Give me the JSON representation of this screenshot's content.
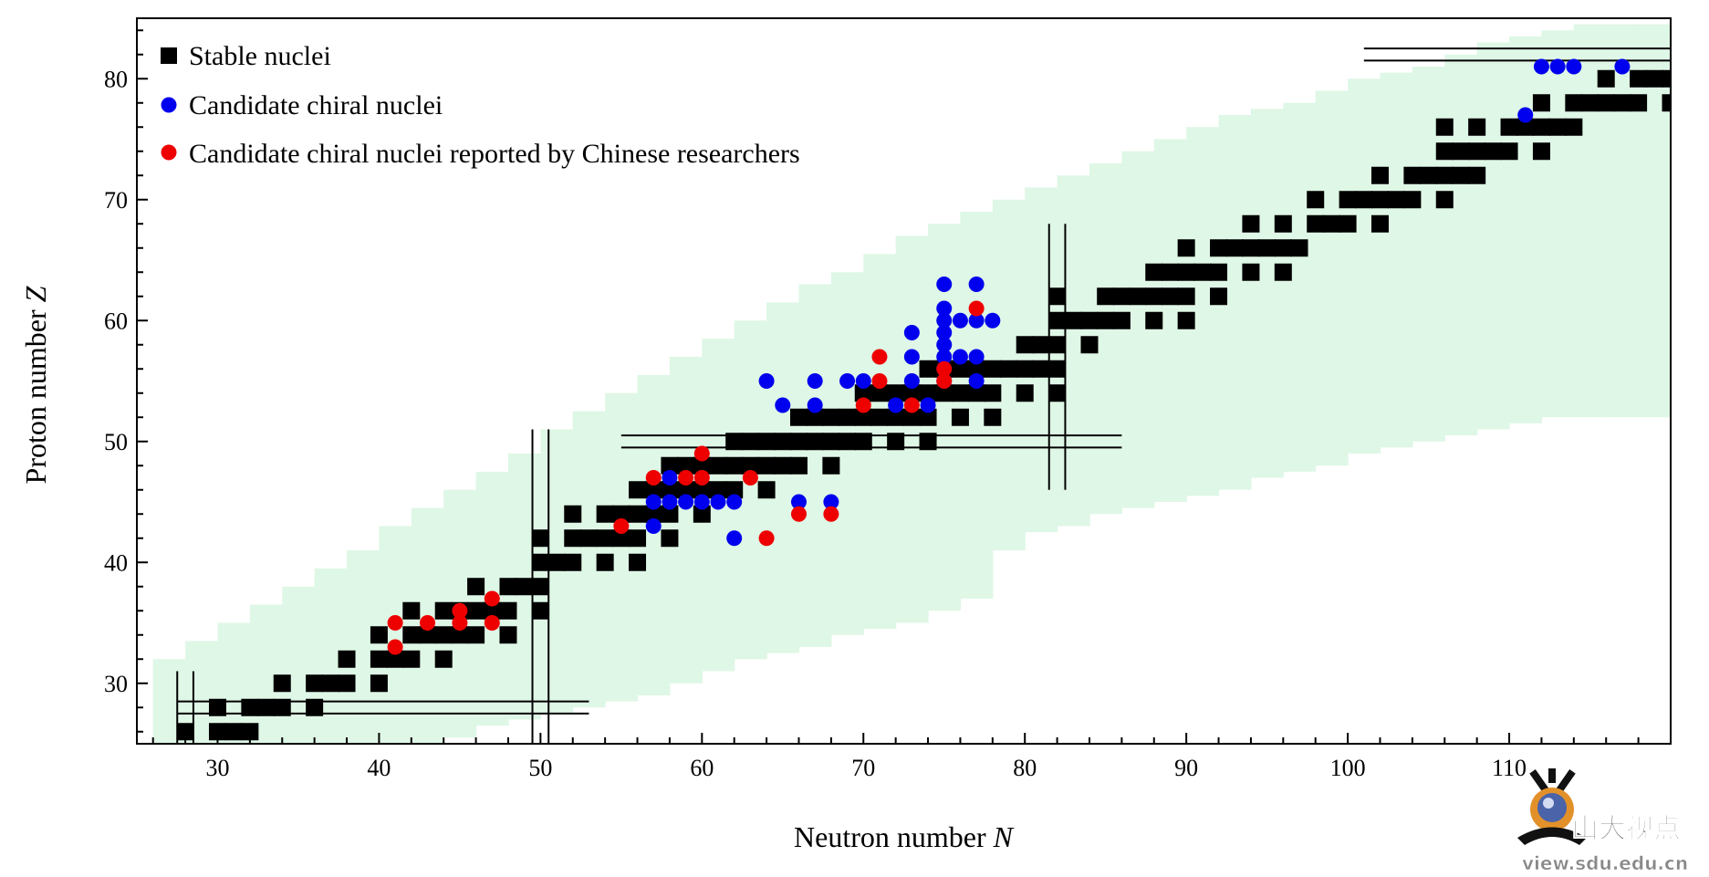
{
  "chart_data": {
    "type": "scatter",
    "title": "",
    "xlabel": "Neutron number N",
    "xlabel_main": "Neutron number ",
    "xlabel_var": "N",
    "ylabel": "Proton number Z",
    "ylabel_main": "Proton number ",
    "ylabel_var": "Z",
    "xlim": [
      25,
      120
    ],
    "ylim": [
      25,
      85
    ],
    "xticks": [
      30,
      40,
      50,
      60,
      70,
      80,
      90,
      100,
      110
    ],
    "xtick_labels": [
      "30",
      "40",
      "50",
      "60",
      "70",
      "80",
      "90",
      "100",
      "110"
    ],
    "yticks": [
      30,
      40,
      50,
      60,
      70,
      80
    ],
    "ytick_labels": [
      "30",
      "40",
      "50",
      "60",
      "70",
      "80"
    ],
    "grid": false,
    "legend_position": "top-left",
    "colors": {
      "stable": "#000000",
      "candidate": "#0000ee",
      "chinese": "#ee0000",
      "band": "#dff7e6"
    },
    "band": [
      [
        26,
        25,
        32
      ],
      [
        28,
        25,
        33.5
      ],
      [
        30,
        25,
        35
      ],
      [
        32,
        25,
        36.5
      ],
      [
        34,
        25,
        38
      ],
      [
        36,
        25,
        39.5
      ],
      [
        38,
        25,
        41
      ],
      [
        40,
        25,
        43
      ],
      [
        42,
        25,
        44.5
      ],
      [
        44,
        25.5,
        46
      ],
      [
        46,
        26.5,
        47.5
      ],
      [
        48,
        27,
        49
      ],
      [
        50,
        27.5,
        51
      ],
      [
        52,
        28,
        52.5
      ],
      [
        54,
        28.5,
        54
      ],
      [
        56,
        29,
        55.5
      ],
      [
        58,
        30,
        57
      ],
      [
        60,
        31,
        58.5
      ],
      [
        62,
        32,
        60
      ],
      [
        64,
        32.5,
        61.5
      ],
      [
        66,
        33,
        63
      ],
      [
        68,
        34,
        64
      ],
      [
        70,
        34.5,
        65.5
      ],
      [
        72,
        35,
        67
      ],
      [
        74,
        36,
        68
      ],
      [
        76,
        37,
        69
      ],
      [
        78,
        41,
        70
      ],
      [
        80,
        42.5,
        71
      ],
      [
        82,
        43,
        72
      ],
      [
        84,
        44,
        73
      ],
      [
        86,
        44.5,
        74
      ],
      [
        88,
        45,
        75
      ],
      [
        90,
        45.5,
        76
      ],
      [
        92,
        46,
        77
      ],
      [
        94,
        47,
        77.5
      ],
      [
        96,
        47.5,
        78
      ],
      [
        98,
        48,
        79
      ],
      [
        100,
        49,
        80
      ],
      [
        102,
        49.5,
        80.5
      ],
      [
        104,
        50,
        81
      ],
      [
        106,
        50.5,
        82
      ],
      [
        108,
        51,
        83
      ],
      [
        110,
        51.5,
        83.5
      ],
      [
        112,
        52,
        84
      ],
      [
        114,
        52,
        84.5
      ],
      [
        116,
        52,
        84.5
      ],
      [
        118,
        52,
        84.5
      ]
    ],
    "magic_lines": [
      {
        "orient": "h",
        "values": [
          27.5,
          28.5
        ],
        "range": [
          27.5,
          53
        ]
      },
      {
        "orient": "v",
        "values": [
          27.5,
          28.5
        ],
        "range": [
          25,
          31
        ]
      },
      {
        "orient": "v",
        "values": [
          49.5,
          50.5
        ],
        "range": [
          25,
          51
        ]
      },
      {
        "orient": "h",
        "values": [
          49.5,
          50.5
        ],
        "range": [
          55,
          86
        ]
      },
      {
        "orient": "v",
        "values": [
          81.5,
          82.5
        ],
        "range": [
          46,
          68
        ]
      },
      {
        "orient": "h",
        "values": [
          81.5,
          82.5
        ],
        "range": [
          101,
          120
        ]
      }
    ],
    "series": [
      {
        "name": "Stable nuclei",
        "marker": "square",
        "color": "#000000",
        "points": [
          [
            28,
            26
          ],
          [
            30,
            26
          ],
          [
            30,
            28
          ],
          [
            31,
            26
          ],
          [
            32,
            26
          ],
          [
            32,
            28
          ],
          [
            33,
            28
          ],
          [
            34,
            28
          ],
          [
            34,
            30
          ],
          [
            36,
            28
          ],
          [
            36,
            30
          ],
          [
            37,
            30
          ],
          [
            38,
            30
          ],
          [
            38,
            32
          ],
          [
            40,
            30
          ],
          [
            40,
            32
          ],
          [
            40,
            34
          ],
          [
            41,
            32
          ],
          [
            42,
            32
          ],
          [
            42,
            34
          ],
          [
            42,
            36
          ],
          [
            43,
            34
          ],
          [
            44,
            32
          ],
          [
            44,
            34
          ],
          [
            44,
            36
          ],
          [
            45,
            34
          ],
          [
            45,
            36
          ],
          [
            46,
            34
          ],
          [
            46,
            36
          ],
          [
            46,
            38
          ],
          [
            47,
            36
          ],
          [
            48,
            34
          ],
          [
            48,
            36
          ],
          [
            48,
            38
          ],
          [
            49,
            38
          ],
          [
            50,
            36
          ],
          [
            50,
            38
          ],
          [
            50,
            40
          ],
          [
            50,
            42
          ],
          [
            51,
            40
          ],
          [
            52,
            40
          ],
          [
            52,
            42
          ],
          [
            52,
            44
          ],
          [
            53,
            42
          ],
          [
            54,
            40
          ],
          [
            54,
            42
          ],
          [
            54,
            44
          ],
          [
            55,
            42
          ],
          [
            55,
            44
          ],
          [
            56,
            40
          ],
          [
            56,
            42
          ],
          [
            56,
            44
          ],
          [
            56,
            46
          ],
          [
            57,
            44
          ],
          [
            57,
            46
          ],
          [
            58,
            42
          ],
          [
            58,
            44
          ],
          [
            58,
            46
          ],
          [
            58,
            48
          ],
          [
            59,
            46
          ],
          [
            59,
            48
          ],
          [
            60,
            44
          ],
          [
            60,
            46
          ],
          [
            60,
            48
          ],
          [
            61,
            46
          ],
          [
            61,
            48
          ],
          [
            62,
            46
          ],
          [
            62,
            48
          ],
          [
            62,
            50
          ],
          [
            63,
            48
          ],
          [
            63,
            50
          ],
          [
            64,
            46
          ],
          [
            64,
            48
          ],
          [
            64,
            50
          ],
          [
            65,
            48
          ],
          [
            65,
            50
          ],
          [
            66,
            48
          ],
          [
            66,
            50
          ],
          [
            66,
            52
          ],
          [
            67,
            50
          ],
          [
            67,
            52
          ],
          [
            68,
            48
          ],
          [
            68,
            50
          ],
          [
            68,
            52
          ],
          [
            69,
            50
          ],
          [
            69,
            52
          ],
          [
            70,
            50
          ],
          [
            70,
            52
          ],
          [
            70,
            54
          ],
          [
            71,
            52
          ],
          [
            71,
            54
          ],
          [
            72,
            50
          ],
          [
            72,
            52
          ],
          [
            72,
            54
          ],
          [
            73,
            52
          ],
          [
            73,
            54
          ],
          [
            74,
            50
          ],
          [
            74,
            52
          ],
          [
            74,
            54
          ],
          [
            74,
            56
          ],
          [
            75,
            54
          ],
          [
            75,
            56
          ],
          [
            76,
            52
          ],
          [
            76,
            54
          ],
          [
            76,
            56
          ],
          [
            77,
            54
          ],
          [
            77,
            56
          ],
          [
            78,
            52
          ],
          [
            78,
            54
          ],
          [
            78,
            56
          ],
          [
            79,
            56
          ],
          [
            80,
            54
          ],
          [
            80,
            56
          ],
          [
            80,
            58
          ],
          [
            81,
            56
          ],
          [
            81,
            58
          ],
          [
            82,
            54
          ],
          [
            82,
            56
          ],
          [
            82,
            58
          ],
          [
            82,
            60
          ],
          [
            82,
            62
          ],
          [
            83,
            60
          ],
          [
            84,
            58
          ],
          [
            84,
            60
          ],
          [
            85,
            60
          ],
          [
            85,
            62
          ],
          [
            86,
            60
          ],
          [
            86,
            62
          ],
          [
            87,
            62
          ],
          [
            88,
            60
          ],
          [
            88,
            62
          ],
          [
            88,
            64
          ],
          [
            89,
            62
          ],
          [
            89,
            64
          ],
          [
            90,
            60
          ],
          [
            90,
            62
          ],
          [
            90,
            64
          ],
          [
            90,
            66
          ],
          [
            91,
            64
          ],
          [
            92,
            62
          ],
          [
            92,
            64
          ],
          [
            92,
            66
          ],
          [
            93,
            66
          ],
          [
            94,
            64
          ],
          [
            94,
            66
          ],
          [
            94,
            68
          ],
          [
            95,
            66
          ],
          [
            96,
            64
          ],
          [
            96,
            66
          ],
          [
            96,
            68
          ],
          [
            97,
            66
          ],
          [
            98,
            68
          ],
          [
            98,
            70
          ],
          [
            99,
            68
          ],
          [
            100,
            68
          ],
          [
            100,
            70
          ],
          [
            101,
            70
          ],
          [
            102,
            68
          ],
          [
            102,
            70
          ],
          [
            102,
            72
          ],
          [
            103,
            70
          ],
          [
            104,
            70
          ],
          [
            104,
            72
          ],
          [
            105,
            72
          ],
          [
            106,
            70
          ],
          [
            106,
            72
          ],
          [
            106,
            74
          ],
          [
            106,
            76
          ],
          [
            107,
            72
          ],
          [
            107,
            74
          ],
          [
            108,
            72
          ],
          [
            108,
            74
          ],
          [
            108,
            76
          ],
          [
            109,
            74
          ],
          [
            110,
            74
          ],
          [
            110,
            76
          ],
          [
            111,
            76
          ],
          [
            112,
            74
          ],
          [
            112,
            76
          ],
          [
            112,
            78
          ],
          [
            113,
            76
          ],
          [
            114,
            76
          ],
          [
            114,
            78
          ],
          [
            115,
            78
          ],
          [
            116,
            78
          ],
          [
            116,
            80
          ],
          [
            117,
            78
          ],
          [
            118,
            78
          ],
          [
            118,
            80
          ],
          [
            119,
            80
          ],
          [
            120,
            78
          ],
          [
            120,
            80
          ]
        ]
      },
      {
        "name": "Candidate chiral nuclei",
        "marker": "circle",
        "color": "#0000ee",
        "points": [
          [
            57,
            43
          ],
          [
            57,
            45
          ],
          [
            58,
            45
          ],
          [
            58,
            47
          ],
          [
            59,
            45
          ],
          [
            60,
            45
          ],
          [
            61,
            45
          ],
          [
            62,
            42
          ],
          [
            62,
            45
          ],
          [
            64,
            55
          ],
          [
            65,
            53
          ],
          [
            66,
            45
          ],
          [
            67,
            53
          ],
          [
            67,
            55
          ],
          [
            68,
            45
          ],
          [
            69,
            55
          ],
          [
            70,
            55
          ],
          [
            72,
            53
          ],
          [
            73,
            55
          ],
          [
            73,
            57
          ],
          [
            73,
            59
          ],
          [
            74,
            53
          ],
          [
            75,
            55
          ],
          [
            75,
            56
          ],
          [
            75,
            57
          ],
          [
            75,
            58
          ],
          [
            75,
            59
          ],
          [
            75,
            60
          ],
          [
            75,
            61
          ],
          [
            75,
            63
          ],
          [
            76,
            57
          ],
          [
            76,
            60
          ],
          [
            77,
            55
          ],
          [
            77,
            57
          ],
          [
            77,
            60
          ],
          [
            77,
            63
          ],
          [
            78,
            60
          ],
          [
            111,
            77
          ],
          [
            112,
            81
          ],
          [
            113,
            81
          ],
          [
            114,
            81
          ],
          [
            117,
            81
          ]
        ]
      },
      {
        "name": "Candidate chiral nuclei reported by Chinese researchers",
        "marker": "circle",
        "color": "#ee0000",
        "points": [
          [
            41,
            33
          ],
          [
            41,
            35
          ],
          [
            43,
            35
          ],
          [
            45,
            35
          ],
          [
            45,
            36
          ],
          [
            47,
            35
          ],
          [
            47,
            37
          ],
          [
            55,
            43
          ],
          [
            57,
            47
          ],
          [
            59,
            47
          ],
          [
            60,
            47
          ],
          [
            60,
            49
          ],
          [
            63,
            47
          ],
          [
            64,
            42
          ],
          [
            66,
            44
          ],
          [
            68,
            44
          ],
          [
            70,
            53
          ],
          [
            71,
            55
          ],
          [
            71,
            57
          ],
          [
            73,
            53
          ],
          [
            75,
            55
          ],
          [
            75,
            56
          ],
          [
            77,
            61
          ]
        ]
      }
    ]
  },
  "legend": {
    "items": [
      {
        "label": "Stable nuclei",
        "marker": "square",
        "color": "#000000"
      },
      {
        "label": "Candidate chiral nuclei",
        "marker": "circle",
        "color": "#0000ee"
      },
      {
        "label": "Candidate chiral nuclei reported by Chinese researchers",
        "marker": "circle",
        "color": "#ee0000"
      }
    ]
  },
  "watermark": {
    "title": "山大视点",
    "url": "view.sdu.edu.cn"
  }
}
